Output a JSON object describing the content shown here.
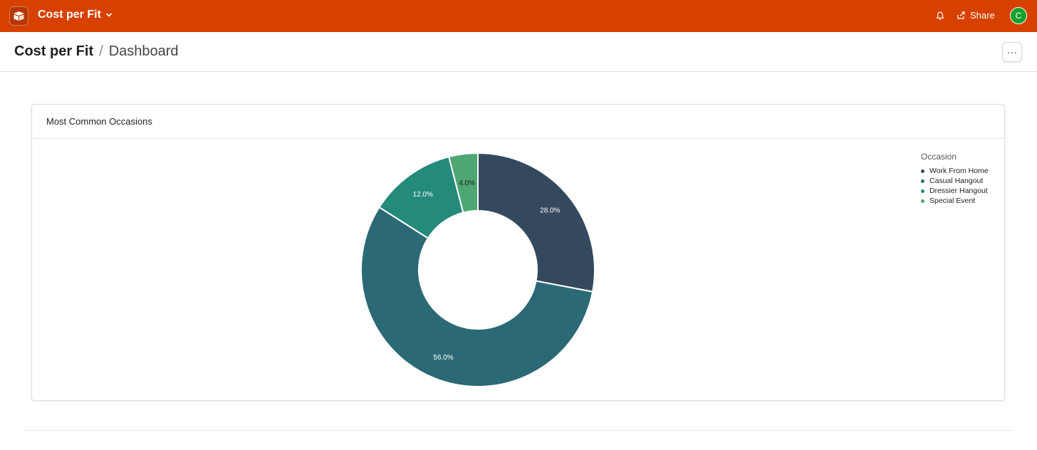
{
  "topbar": {
    "app_title": "Cost per Fit",
    "share_label": "Share",
    "avatar_initial": "C",
    "color": "#d74100"
  },
  "breadcrumb": {
    "base": "Cost per Fit",
    "separator": "/",
    "page": "Dashboard"
  },
  "toolbar": {
    "more_label": "···"
  },
  "card": {
    "title": "Most Common Occasions"
  },
  "chart_data": {
    "type": "pie",
    "variant": "donut",
    "legend_title": "Occasion",
    "legend_position": "top-right",
    "categories": [
      "Work From Home",
      "Casual Hangout",
      "Dressier Hangout",
      "Special Event"
    ],
    "values": [
      28.0,
      56.0,
      12.0,
      4.0
    ],
    "labels": [
      "28.0%",
      "56.0%",
      "12.0%",
      "4.0%"
    ],
    "colors": [
      "#34495e",
      "#2b6a75",
      "#248a7b",
      "#4ea673"
    ]
  }
}
